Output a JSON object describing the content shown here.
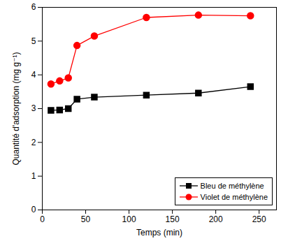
{
  "chart_data": {
    "type": "line",
    "x_label": "Temps (min)",
    "y_label": "Quantité d'adsorption (mg g⁻¹)",
    "x": [
      10,
      20,
      30,
      40,
      60,
      120,
      180,
      240
    ],
    "series": [
      {
        "name": "Bleu de méthylène",
        "color": "#000000",
        "marker": "square",
        "values": [
          2.95,
          2.96,
          3.0,
          3.28,
          3.34,
          3.4,
          3.46,
          3.65
        ]
      },
      {
        "name": "Violet de méthylène",
        "color": "#ff0000",
        "marker": "circle",
        "values": [
          3.73,
          3.82,
          3.91,
          4.87,
          5.15,
          5.7,
          5.77,
          5.75
        ]
      }
    ],
    "xlim": [
      0,
      270
    ],
    "xticks": [
      0,
      50,
      100,
      150,
      200,
      250
    ],
    "ylim": [
      0,
      6
    ],
    "yticks": [
      0,
      1,
      2,
      3,
      4,
      5,
      6
    ],
    "grid": false,
    "legend": "lower right"
  }
}
